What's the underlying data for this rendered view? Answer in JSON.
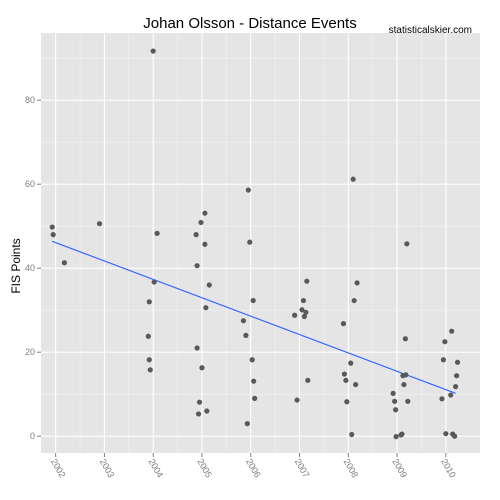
{
  "chart_data": {
    "type": "scatter",
    "title": "Johan Olsson - Distance Events",
    "watermark": "statisticalskier.com",
    "xlabel": "",
    "ylabel": "FIS Points",
    "xlim": [
      2001.7,
      2010.7
    ],
    "ylim": [
      -4,
      96
    ],
    "x_ticks": [
      2002,
      2003,
      2004,
      2005,
      2006,
      2007,
      2008,
      2009,
      2010
    ],
    "x_tick_labels": [
      "2002",
      "2003",
      "2004",
      "2005",
      "2006",
      "2007",
      "2008",
      "2009",
      "2010"
    ],
    "y_ticks": [
      0,
      20,
      40,
      60,
      80
    ],
    "y_tick_labels": [
      "0",
      "20",
      "40",
      "60",
      "80"
    ],
    "grid": true,
    "colors": {
      "panel": "#e5e5e5",
      "grid_major": "#ffffff",
      "grid_minor": "#f2f2f2",
      "points": "#595959",
      "trend": "#3366ff"
    },
    "points": [
      [
        2001.93,
        49.8
      ],
      [
        2001.95,
        48.0
      ],
      [
        2002.18,
        41.3
      ],
      [
        2002.9,
        50.6
      ],
      [
        2003.9,
        23.8
      ],
      [
        2003.92,
        32.0
      ],
      [
        2003.92,
        18.2
      ],
      [
        2003.94,
        15.8
      ],
      [
        2004.0,
        91.7
      ],
      [
        2004.02,
        36.7
      ],
      [
        2004.08,
        48.3
      ],
      [
        2004.88,
        48.0
      ],
      [
        2004.9,
        40.6
      ],
      [
        2004.9,
        21.0
      ],
      [
        2004.95,
        8.1
      ],
      [
        2004.93,
        5.3
      ],
      [
        2004.98,
        50.9
      ],
      [
        2005.0,
        16.3
      ],
      [
        2005.06,
        53.1
      ],
      [
        2005.06,
        45.7
      ],
      [
        2005.08,
        30.6
      ],
      [
        2005.1,
        6.0
      ],
      [
        2005.15,
        36.0
      ],
      [
        2005.85,
        27.5
      ],
      [
        2005.9,
        24.0
      ],
      [
        2005.93,
        3.0
      ],
      [
        2005.95,
        58.6
      ],
      [
        2005.98,
        46.2
      ],
      [
        2006.03,
        18.2
      ],
      [
        2006.05,
        32.3
      ],
      [
        2006.06,
        13.1
      ],
      [
        2006.08,
        9.0
      ],
      [
        2006.9,
        28.8
      ],
      [
        2006.95,
        8.6
      ],
      [
        2007.05,
        30.1
      ],
      [
        2007.08,
        32.3
      ],
      [
        2007.1,
        28.5
      ],
      [
        2007.13,
        29.5
      ],
      [
        2007.15,
        36.9
      ],
      [
        2007.17,
        13.3
      ],
      [
        2007.9,
        26.8
      ],
      [
        2007.92,
        14.8
      ],
      [
        2007.95,
        13.3
      ],
      [
        2007.97,
        8.2
      ],
      [
        2008.05,
        17.4
      ],
      [
        2008.07,
        0.4
      ],
      [
        2008.1,
        61.2
      ],
      [
        2008.12,
        32.3
      ],
      [
        2008.15,
        12.3
      ],
      [
        2008.18,
        36.5
      ],
      [
        2008.92,
        10.2
      ],
      [
        2008.95,
        8.3
      ],
      [
        2008.97,
        6.3
      ],
      [
        2008.98,
        -0.1
      ],
      [
        2009.08,
        0.3
      ],
      [
        2009.1,
        0.5
      ],
      [
        2009.12,
        14.4
      ],
      [
        2009.14,
        12.3
      ],
      [
        2009.17,
        23.2
      ],
      [
        2009.18,
        14.6
      ],
      [
        2009.2,
        45.8
      ],
      [
        2009.22,
        8.3
      ],
      [
        2009.92,
        8.9
      ],
      [
        2009.95,
        18.2
      ],
      [
        2009.98,
        22.5
      ],
      [
        2010.0,
        0.6
      ],
      [
        2010.1,
        9.8
      ],
      [
        2010.12,
        25.0
      ],
      [
        2010.14,
        0.5
      ],
      [
        2010.18,
        0.0
      ],
      [
        2010.2,
        11.8
      ],
      [
        2010.22,
        14.4
      ],
      [
        2010.24,
        17.6
      ]
    ],
    "trend_line": [
      [
        2001.93,
        46.4
      ],
      [
        2010.2,
        10.2
      ]
    ]
  }
}
